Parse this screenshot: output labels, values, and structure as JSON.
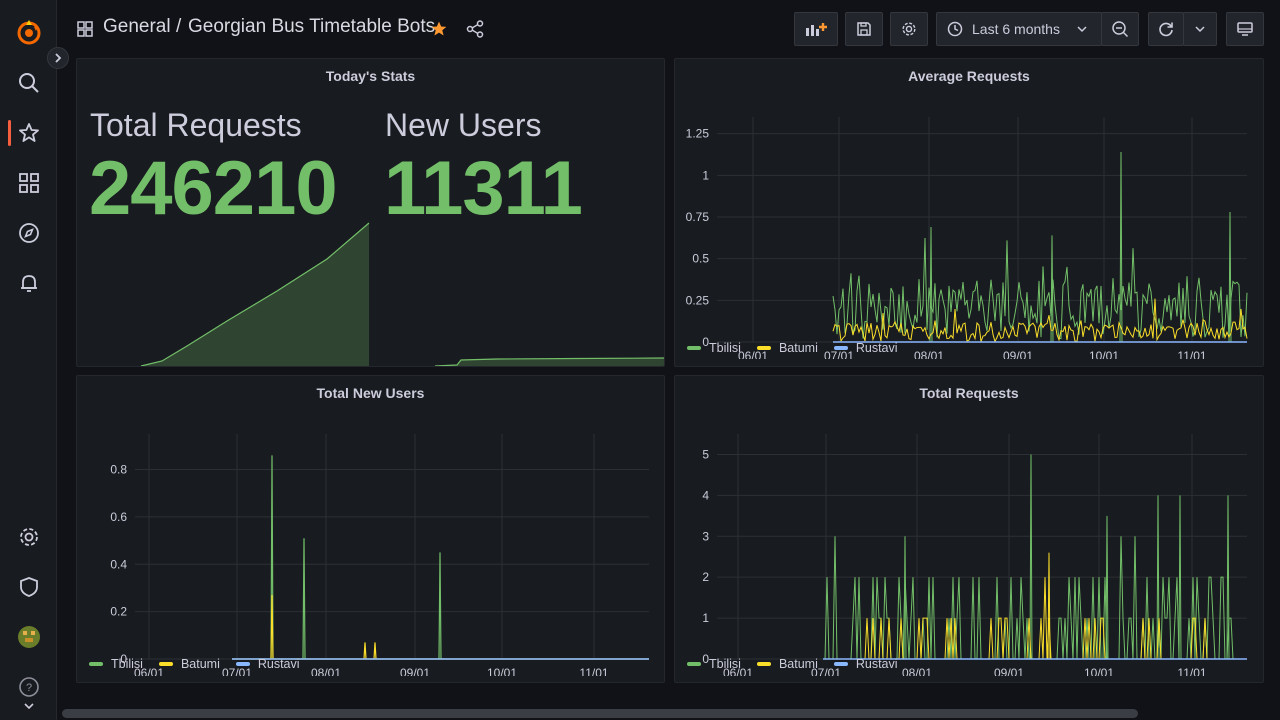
{
  "topbar": {
    "breadcrumb_folder": "General",
    "breadcrumb_separator": "/",
    "dashboard_title": "Georgian Bus Timetable Bots",
    "time_range": "Last 6 months"
  },
  "colors": {
    "tbilisi": "#73bf69",
    "batumi": "#fade2a",
    "rustavi": "#8ab8ff",
    "accent": "#f55f3e",
    "star": "#ff9830"
  },
  "stats_panel": {
    "title": "Today's Stats",
    "total_requests_label": "Total Requests",
    "total_requests_value": "246210",
    "new_users_label": "New Users",
    "new_users_value": "11311"
  },
  "legend": {
    "series": [
      "Tbilisi",
      "Batumi",
      "Rustavi"
    ]
  },
  "chart_data": [
    {
      "type": "line",
      "title": "Average Requests",
      "x_ticks": [
        "06/01",
        "07/01",
        "08/01",
        "09/01",
        "10/01",
        "11/01"
      ],
      "y_ticks": [
        "0",
        "0.25",
        "0.5",
        "0.75",
        "1",
        "1.25"
      ],
      "ylim": [
        0,
        1.35
      ],
      "grid": true,
      "legend": "bottom-left",
      "series": [
        {
          "name": "Tbilisi",
          "peak": 1.14
        },
        {
          "name": "Batumi",
          "peak": 0.32
        },
        {
          "name": "Rustavi",
          "peak": 0.0
        }
      ]
    },
    {
      "type": "line",
      "title": "Total New Users",
      "x_ticks": [
        "06/01",
        "07/01",
        "08/01",
        "09/01",
        "10/01",
        "11/01"
      ],
      "y_ticks": [
        "0",
        "0.2",
        "0.4",
        "0.6",
        "0.8"
      ],
      "ylim": [
        0,
        0.95
      ],
      "grid": true,
      "legend": "bottom-left",
      "series": [
        {
          "name": "Tbilisi",
          "spikes": [
            0.86,
            0.51,
            0.45
          ]
        },
        {
          "name": "Batumi",
          "spikes": [
            0.27,
            0.07,
            0.07
          ]
        },
        {
          "name": "Rustavi",
          "spikes": []
        }
      ]
    },
    {
      "type": "line",
      "title": "Total Requests",
      "x_ticks": [
        "06/01",
        "07/01",
        "08/01",
        "09/01",
        "10/01",
        "11/01"
      ],
      "y_ticks": [
        "0",
        "1",
        "2",
        "3",
        "4",
        "5"
      ],
      "ylim": [
        0,
        5.5
      ],
      "grid": true,
      "legend": "bottom-left",
      "series": [
        {
          "name": "Tbilisi",
          "peak": 5
        },
        {
          "name": "Batumi",
          "peak": 2.6
        },
        {
          "name": "Rustavi",
          "peak": 0
        }
      ]
    }
  ]
}
